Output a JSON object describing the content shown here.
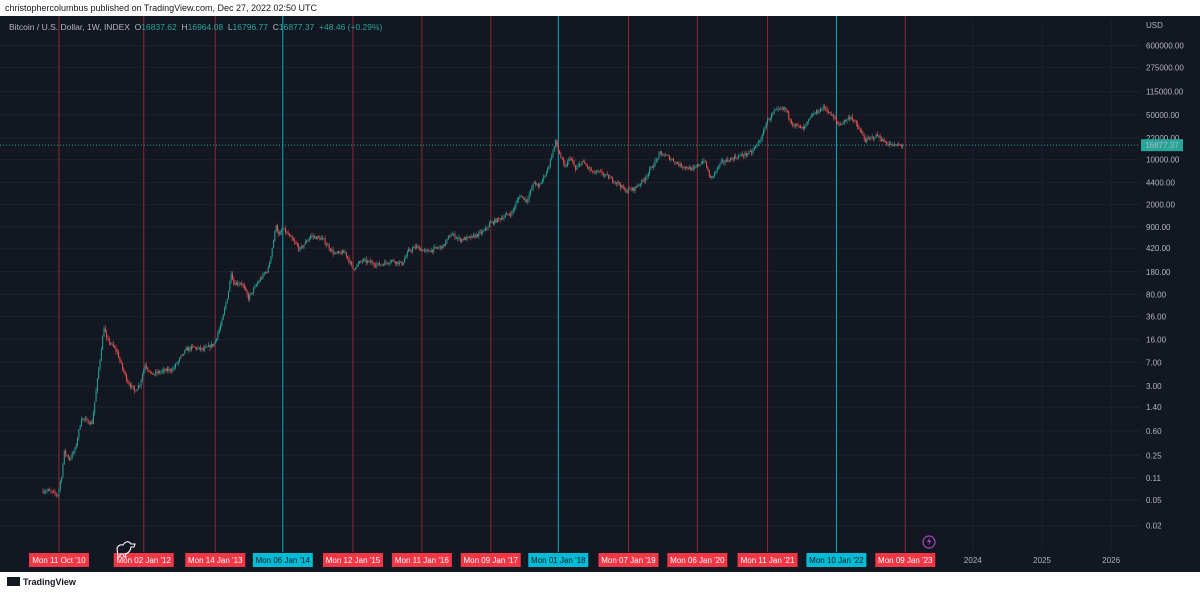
{
  "header": {
    "publisher_line": "christophercolumbus published on TradingView.com, Dec 27, 2022 02:50 UTC"
  },
  "legend": {
    "symbol": "Bitcoin / U.S. Dollar, 1W, INDEX",
    "open_label": "O",
    "open": "16837.62",
    "high_label": "H",
    "high": "16964.08",
    "low_label": "L",
    "low": "16796.77",
    "close_label": "C",
    "close": "16877.37",
    "change": "+48.46 (+0.29%)"
  },
  "footer": {
    "brand": "TradingView"
  },
  "colors": {
    "background": "#131722",
    "up": "#26a69a",
    "down": "#ef5350",
    "red_marker": "#f23645",
    "cyan_marker": "#00bcd4",
    "grid": "#1e222d",
    "axis_text": "#b2b5be"
  },
  "chart_data": {
    "type": "candlestick",
    "title": "Bitcoin / U.S. Dollar, 1W, INDEX",
    "currency": "USD",
    "y_scale": "log",
    "ylim": [
      0.009,
      1500000
    ],
    "x_range": [
      "2010-06-01",
      "2026-12-31"
    ],
    "y_ticks": [
      "600000.00",
      "275000.00",
      "115000.00",
      "50000.00",
      "22000.00",
      "10000.00",
      "4400.00",
      "2000.00",
      "900.00",
      "420.00",
      "180.00",
      "80.00",
      "36.00",
      "16.00",
      "7.00",
      "3.00",
      "1.40",
      "0.60",
      "0.25",
      "0.11",
      "0.05",
      "0.02"
    ],
    "last_price": {
      "value": 16877.37,
      "label": "16877.37"
    },
    "vertical_markers": [
      {
        "date": "2010-10-11",
        "label": "Mon 11 Oct '10",
        "color": "red"
      },
      {
        "date": "2012-01-02",
        "label": "Mon 02 Jan '12",
        "color": "red"
      },
      {
        "date": "2013-01-14",
        "label": "Mon 14 Jan '13",
        "color": "red"
      },
      {
        "date": "2014-01-06",
        "label": "Mon 06 Jan '14",
        "color": "cyan"
      },
      {
        "date": "2015-01-12",
        "label": "Mon 12 Jan '15",
        "color": "red"
      },
      {
        "date": "2016-01-11",
        "label": "Mon 11 Jan '16",
        "color": "red"
      },
      {
        "date": "2017-01-09",
        "label": "Mon 09 Jan '17",
        "color": "red"
      },
      {
        "date": "2018-01-01",
        "label": "Mon 01 Jan '18",
        "color": "cyan"
      },
      {
        "date": "2019-01-07",
        "label": "Mon 07 Jan '19",
        "color": "red"
      },
      {
        "date": "2020-01-06",
        "label": "Mon 06 Jan '20",
        "color": "red"
      },
      {
        "date": "2021-01-11",
        "label": "Mon 11 Jan '21",
        "color": "red"
      },
      {
        "date": "2022-01-10",
        "label": "Mon 10 Jan '22",
        "color": "cyan"
      },
      {
        "date": "2023-01-09",
        "label": "Mon 09 Jan '23",
        "color": "red"
      }
    ],
    "x_year_ticks": [
      {
        "date": "2024-01-01",
        "label": "2024"
      },
      {
        "date": "2025-01-01",
        "label": "2025"
      },
      {
        "date": "2026-01-01",
        "label": "2026"
      }
    ],
    "price_path": [
      [
        "2010-07-19",
        0.07
      ],
      [
        "2010-08-16",
        0.07
      ],
      [
        "2010-10-04",
        0.06
      ],
      [
        "2010-10-25",
        0.12
      ],
      [
        "2010-11-08",
        0.28
      ],
      [
        "2010-12-06",
        0.22
      ],
      [
        "2011-01-03",
        0.3
      ],
      [
        "2011-02-07",
        0.95
      ],
      [
        "2011-03-07",
        0.85
      ],
      [
        "2011-04-04",
        0.8
      ],
      [
        "2011-04-25",
        2.5
      ],
      [
        "2011-05-16",
        8.0
      ],
      [
        "2011-06-06",
        25.0
      ],
      [
        "2011-06-20",
        16.0
      ],
      [
        "2011-07-18",
        13.0
      ],
      [
        "2011-08-15",
        10.0
      ],
      [
        "2011-09-12",
        5.5
      ],
      [
        "2011-10-10",
        3.5
      ],
      [
        "2011-11-14",
        2.5
      ],
      [
        "2011-12-12",
        3.2
      ],
      [
        "2012-01-09",
        6.5
      ],
      [
        "2012-02-13",
        4.5
      ],
      [
        "2012-04-02",
        5.0
      ],
      [
        "2012-06-04",
        5.5
      ],
      [
        "2012-08-13",
        11.0
      ],
      [
        "2012-09-17",
        12.0
      ],
      [
        "2012-11-12",
        11.0
      ],
      [
        "2013-01-07",
        13.5
      ],
      [
        "2013-02-18",
        30.0
      ],
      [
        "2013-03-25",
        90.0
      ],
      [
        "2013-04-08",
        180.0
      ],
      [
        "2013-04-22",
        120.0
      ],
      [
        "2013-06-03",
        120.0
      ],
      [
        "2013-07-08",
        70.0
      ],
      [
        "2013-09-02",
        130.0
      ],
      [
        "2013-10-21",
        200.0
      ],
      [
        "2013-11-18",
        550.0
      ],
      [
        "2013-12-02",
        1000.0
      ],
      [
        "2013-12-16",
        650.0
      ],
      [
        "2014-01-06",
        850.0
      ],
      [
        "2014-02-17",
        600.0
      ],
      [
        "2014-04-07",
        400.0
      ],
      [
        "2014-06-02",
        650.0
      ],
      [
        "2014-08-04",
        580.0
      ],
      [
        "2014-10-06",
        340.0
      ],
      [
        "2014-12-01",
        360.0
      ],
      [
        "2015-01-12",
        200.0
      ],
      [
        "2015-03-02",
        270.0
      ],
      [
        "2015-06-01",
        230.0
      ],
      [
        "2015-08-03",
        270.0
      ],
      [
        "2015-09-28",
        240.0
      ],
      [
        "2015-11-02",
        380.0
      ],
      [
        "2015-12-14",
        440.0
      ],
      [
        "2016-02-01",
        370.0
      ],
      [
        "2016-05-02",
        450.0
      ],
      [
        "2016-06-13",
        700.0
      ],
      [
        "2016-08-01",
        570.0
      ],
      [
        "2016-10-03",
        620.0
      ],
      [
        "2016-12-05",
        770.0
      ],
      [
        "2017-01-02",
        1000.0
      ],
      [
        "2017-03-06",
        1250.0
      ],
      [
        "2017-05-01",
        1500.0
      ],
      [
        "2017-06-12",
        2800.0
      ],
      [
        "2017-07-17",
        2300.0
      ],
      [
        "2017-08-28",
        4500.0
      ],
      [
        "2017-09-18",
        3700.0
      ],
      [
        "2017-11-06",
        7200.0
      ],
      [
        "2017-12-18",
        19000.0
      ],
      [
        "2018-01-01",
        14000.0
      ],
      [
        "2018-02-05",
        7500.0
      ],
      [
        "2018-03-05",
        11000.0
      ],
      [
        "2018-04-02",
        7000.0
      ],
      [
        "2018-05-07",
        9400.0
      ],
      [
        "2018-07-02",
        6300.0
      ],
      [
        "2018-08-13",
        6300.0
      ],
      [
        "2018-11-19",
        4200.0
      ],
      [
        "2018-12-17",
        3300.0
      ],
      [
        "2019-02-04",
        3500.0
      ],
      [
        "2019-04-01",
        5000.0
      ],
      [
        "2019-06-24",
        12500.0
      ],
      [
        "2019-08-05",
        11000.0
      ],
      [
        "2019-10-07",
        8200.0
      ],
      [
        "2019-11-18",
        7500.0
      ],
      [
        "2019-12-16",
        7000.0
      ],
      [
        "2020-02-10",
        10000.0
      ],
      [
        "2020-03-16",
        5000.0
      ],
      [
        "2020-05-11",
        9000.0
      ],
      [
        "2020-07-27",
        11000.0
      ],
      [
        "2020-10-19",
        13000.0
      ],
      [
        "2020-12-14",
        23000.0
      ],
      [
        "2021-01-04",
        38000.0
      ],
      [
        "2021-02-15",
        56000.0
      ],
      [
        "2021-04-12",
        63000.0
      ],
      [
        "2021-05-24",
        36000.0
      ],
      [
        "2021-07-19",
        30000.0
      ],
      [
        "2021-09-06",
        50000.0
      ],
      [
        "2021-10-18",
        61000.0
      ],
      [
        "2021-11-08",
        66000.0
      ],
      [
        "2022-01-03",
        42000.0
      ],
      [
        "2022-01-24",
        35000.0
      ],
      [
        "2022-03-28",
        47000.0
      ],
      [
        "2022-05-09",
        30000.0
      ],
      [
        "2022-06-13",
        20000.0
      ],
      [
        "2022-08-15",
        24000.0
      ],
      [
        "2022-09-19",
        19000.0
      ],
      [
        "2022-11-07",
        16500.0
      ],
      [
        "2022-12-12",
        17000.0
      ],
      [
        "2022-12-26",
        16877.37
      ]
    ]
  }
}
